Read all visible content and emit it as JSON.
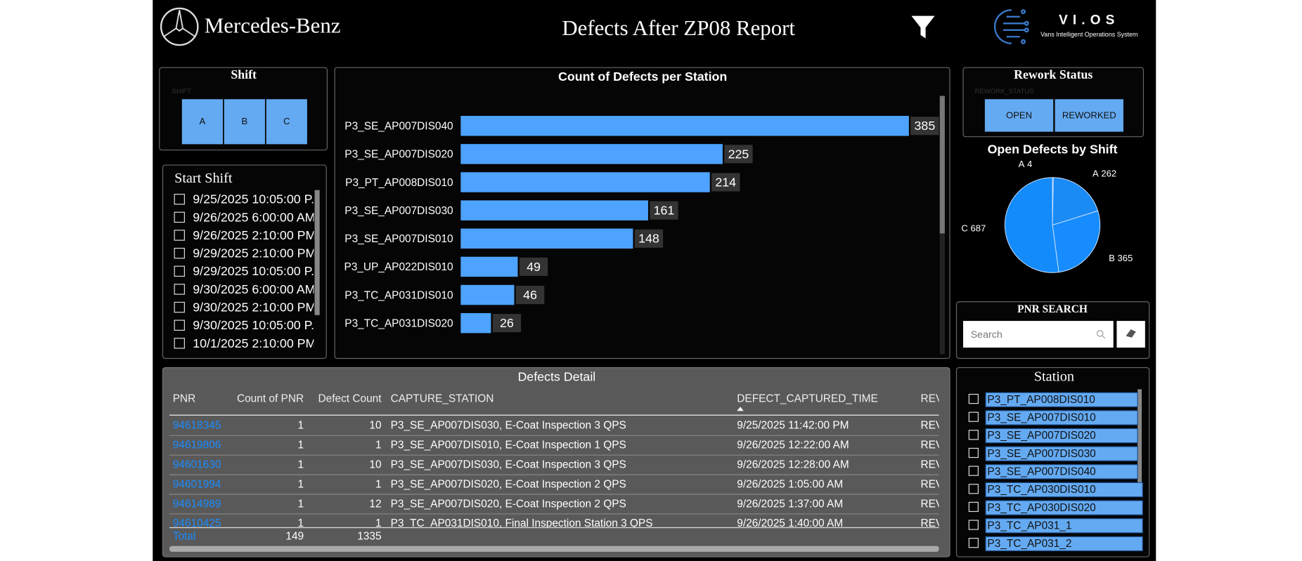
{
  "header": {
    "brand": "Mercedes-Benz",
    "title": "Defects After ZP08 Report",
    "logo_name": "VI.OS",
    "logo_tagline": "Vans Intelligent Operations System"
  },
  "shift_slicer": {
    "title": "Shift",
    "field": "SHIFT",
    "options": [
      "A",
      "B",
      "C"
    ]
  },
  "start_shift": {
    "title": "Start Shift",
    "items": [
      "9/25/2025 10:05:00 P..",
      "9/26/2025 6:00:00 AM",
      "9/26/2025 2:10:00 PM",
      "9/29/2025 2:10:00 PM",
      "9/29/2025 10:05:00 P..",
      "9/30/2025 6:00:00 AM",
      "9/30/2025 2:10:00 PM",
      "9/30/2025 10:05:00 P...",
      "10/1/2025 2:10:00 PM"
    ]
  },
  "rework_slicer": {
    "title": "Rework Status",
    "field": "REWORK_STATUS",
    "options": [
      "OPEN",
      "REWORKED"
    ]
  },
  "pnr_search": {
    "title": "PNR SEARCH",
    "placeholder": "Search"
  },
  "chart_data": [
    {
      "type": "bar",
      "orientation": "horizontal",
      "title": "Count of Defects per Station",
      "categories": [
        "P3_SE_AP007DIS040",
        "P3_SE_AP007DIS020",
        "P3_PT_AP008DIS010",
        "P3_SE_AP007DIS030",
        "P3_SE_AP007DIS010",
        "P3_UP_AP022DIS010",
        "P3_TC_AP031DIS010",
        "P3_TC_AP031DIS020"
      ],
      "values": [
        385,
        225,
        214,
        161,
        148,
        49,
        46,
        26
      ],
      "color": "#4da3ff"
    },
    {
      "type": "pie",
      "title": "Open Defects by Shift",
      "categories": [
        "A",
        "A",
        "B",
        "C"
      ],
      "values": [
        4,
        262,
        365,
        687
      ],
      "colors": [
        "#1b5fc4",
        "#1a8af5",
        "#168cff",
        "#138bfb"
      ]
    }
  ],
  "table": {
    "title": "Defects Detail",
    "columns": [
      "PNR",
      "Count of PNR",
      "Defect Count",
      "CAPTURE_STATION",
      "DEFECT_CAPTURED_TIME",
      "REV"
    ],
    "rows": [
      [
        "94618345",
        1,
        10,
        "P3_SE_AP007DIS030, E-Coat Inspection 3 QPS",
        "9/25/2025 11:42:00 PM",
        "REV"
      ],
      [
        "94619806",
        1,
        1,
        "P3_SE_AP007DIS010, E-Coat Inspection 1 QPS",
        "9/26/2025 12:22:00 AM",
        "REV"
      ],
      [
        "94601630",
        1,
        10,
        "P3_SE_AP007DIS030, E-Coat Inspection 3 QPS",
        "9/26/2025 12:28:00 AM",
        "REV"
      ],
      [
        "94601994",
        1,
        1,
        "P3_SE_AP007DIS020, E-Coat Inspection 2 QPS",
        "9/26/2025 1:05:00 AM",
        "REV"
      ],
      [
        "94614989",
        1,
        12,
        "P3_SE_AP007DIS020, E-Coat Inspection 2 QPS",
        "9/26/2025 1:37:00 AM",
        "REV"
      ],
      [
        "94610425",
        1,
        1,
        "P3_TC_AP031DIS010, Final Inspection Station 3 QPS",
        "9/26/2025 1:40:00 AM",
        "REV"
      ]
    ],
    "total": [
      "Total",
      149,
      1335
    ]
  },
  "station": {
    "title": "Station",
    "items": [
      "P3_PT_AP008DIS010",
      "P3_SE_AP007DIS010",
      "P3_SE_AP007DIS020",
      "P3_SE_AP007DIS030",
      "P3_SE_AP007DIS040",
      "P3_TC_AP030DIS010",
      "P3_TC_AP030DIS020",
      "P3_TC_AP031_1",
      "P3_TC_AP031_2"
    ]
  }
}
